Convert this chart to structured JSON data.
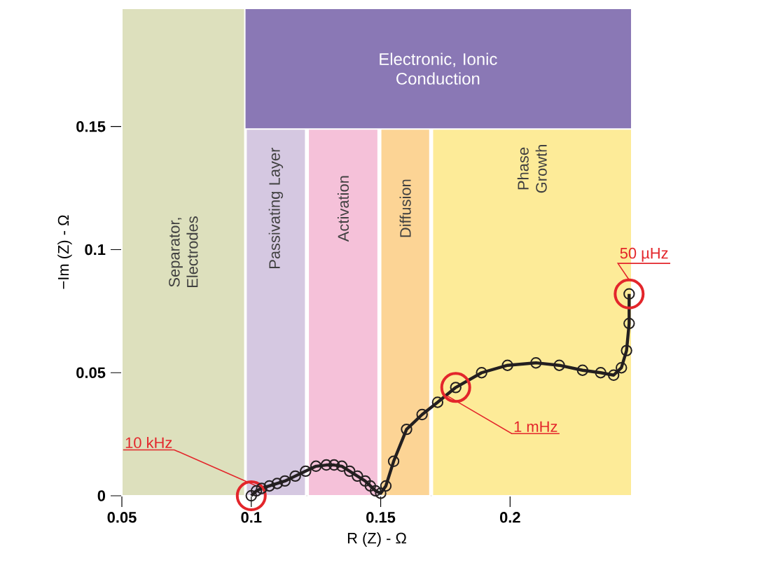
{
  "chart_data": {
    "type": "line",
    "xlabel": "R (Z) - Ω",
    "ylabel": "−Im (Z) - Ω",
    "xlim": [
      0.05,
      0.247
    ],
    "ylim": [
      0,
      0.198
    ],
    "xticks": [
      0.05,
      0.1,
      0.15,
      0.2
    ],
    "yticks": [
      0,
      0.05,
      0.1,
      0.15
    ],
    "marker": "circle",
    "line_style": "solid",
    "series": [
      {
        "color": "#231f20",
        "x": [
          0.1,
          0.102,
          0.104,
          0.107,
          0.11,
          0.113,
          0.117,
          0.121,
          0.125,
          0.129,
          0.132,
          0.135,
          0.138,
          0.141,
          0.144,
          0.146,
          0.148,
          0.15,
          0.152,
          0.155,
          0.16,
          0.166,
          0.172,
          0.179,
          0.189,
          0.199,
          0.21,
          0.219,
          0.228,
          0.235,
          0.24,
          0.243,
          0.245,
          0.246,
          0.246
        ],
        "values": [
          0,
          0.002,
          0.003,
          0.004,
          0.005,
          0.006,
          0.008,
          0.01,
          0.012,
          0.0125,
          0.0125,
          0.012,
          0.01,
          0.008,
          0.006,
          0.004,
          0.002,
          0.001,
          0.004,
          0.014,
          0.027,
          0.033,
          0.038,
          0.044,
          0.05,
          0.053,
          0.054,
          0.053,
          0.051,
          0.05,
          0.049,
          0.052,
          0.059,
          0.07,
          0.082
        ]
      }
    ],
    "bands": [
      {
        "axis": "x",
        "from": 0.098,
        "to": 0.121,
        "label": "Passivating Layer",
        "color": "#d5c8e1"
      },
      {
        "axis": "x",
        "from": 0.122,
        "to": 0.149,
        "label": "Activation",
        "color": "#f5c1d9"
      },
      {
        "axis": "x",
        "from": 0.15,
        "to": 0.169,
        "label": "Diffusion",
        "color": "#fcd495"
      },
      {
        "axis": "x",
        "from": 0.17,
        "to": 0.247,
        "label": "Phase Growth",
        "color": "#fdeb98"
      },
      {
        "axis": "y",
        "from": 0.149,
        "to": 0.198,
        "label": "Electronic, Ionic Conduction",
        "color": "#8a78b5"
      },
      {
        "axis": "x",
        "from": 0.05,
        "to": 0.0975,
        "label": "Separator, Electrodes",
        "color": "#dde0bd"
      }
    ],
    "annotations": [
      {
        "text": "10 kHz",
        "x": 0.1,
        "y": 0
      },
      {
        "text": "1 mHz",
        "x": 0.179,
        "y": 0.044
      },
      {
        "text": "50 µHz",
        "x": 0.246,
        "y": 0.082
      }
    ]
  }
}
